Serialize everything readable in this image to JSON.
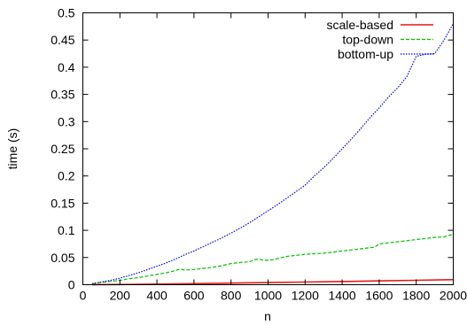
{
  "chart_data": {
    "type": "line",
    "xlabel": "n",
    "ylabel": "time (s)",
    "xlim": [
      0,
      2000
    ],
    "ylim": [
      0,
      0.5
    ],
    "x_ticks": [
      0,
      200,
      400,
      600,
      800,
      1000,
      1200,
      1400,
      1600,
      1800,
      2000
    ],
    "x_tick_labels": [
      "0",
      "200",
      "400",
      "600",
      "800",
      "1000",
      "1200",
      "1400",
      "1600",
      "1800",
      "2000"
    ],
    "y_ticks": [
      0,
      0.05,
      0.1,
      0.15,
      0.2,
      0.25,
      0.3,
      0.35,
      0.4,
      0.45,
      0.5
    ],
    "y_tick_labels": [
      "0",
      "0.05",
      "0.1",
      "0.15",
      "0.2",
      "0.25",
      "0.3",
      "0.35",
      "0.4",
      "0.45",
      "0.5"
    ],
    "grid": false,
    "legend_position": "top-right",
    "series": [
      {
        "name": "scale-based",
        "color": "#e41a1c",
        "style": "solid",
        "x": [
          50,
          200,
          400,
          600,
          800,
          1000,
          1200,
          1400,
          1600,
          1800,
          2000
        ],
        "y": [
          0.0001,
          0.0004,
          0.0011,
          0.0019,
          0.0029,
          0.0039,
          0.0049,
          0.0059,
          0.007,
          0.0081,
          0.0093
        ]
      },
      {
        "name": "top-down",
        "color": "#00c000",
        "style": "dashed",
        "x": [
          50,
          100,
          150,
          200,
          250,
          300,
          350,
          400,
          450,
          500,
          525,
          550,
          600,
          650,
          700,
          750,
          800,
          850,
          900,
          925,
          950,
          975,
          1000,
          1025,
          1050,
          1100,
          1150,
          1200,
          1250,
          1300,
          1350,
          1400,
          1450,
          1500,
          1550,
          1575,
          1600,
          1650,
          1700,
          1750,
          1800,
          1850,
          1900,
          1950,
          2000
        ],
        "y": [
          0.002,
          0.004,
          0.006,
          0.008,
          0.011,
          0.013,
          0.016,
          0.019,
          0.022,
          0.026,
          0.029,
          0.027,
          0.028,
          0.03,
          0.032,
          0.035,
          0.039,
          0.041,
          0.042,
          0.046,
          0.047,
          0.045,
          0.045,
          0.046,
          0.048,
          0.052,
          0.054,
          0.056,
          0.057,
          0.058,
          0.06,
          0.062,
          0.064,
          0.066,
          0.068,
          0.069,
          0.075,
          0.077,
          0.079,
          0.081,
          0.083,
          0.085,
          0.087,
          0.088,
          0.093
        ]
      },
      {
        "name": "bottom-up",
        "color": "#0000e0",
        "style": "dotted",
        "x": [
          50,
          100,
          150,
          200,
          250,
          300,
          350,
          400,
          450,
          500,
          550,
          600,
          650,
          700,
          750,
          800,
          850,
          900,
          950,
          1000,
          1050,
          1100,
          1150,
          1200,
          1250,
          1300,
          1350,
          1400,
          1450,
          1500,
          1550,
          1600,
          1650,
          1700,
          1750,
          1800,
          1850,
          1900,
          1950,
          2000
        ],
        "y": [
          0.002,
          0.005,
          0.008,
          0.012,
          0.017,
          0.022,
          0.028,
          0.034,
          0.04,
          0.047,
          0.055,
          0.062,
          0.07,
          0.078,
          0.086,
          0.095,
          0.104,
          0.114,
          0.125,
          0.136,
          0.147,
          0.159,
          0.171,
          0.183,
          0.2,
          0.215,
          0.232,
          0.25,
          0.268,
          0.287,
          0.307,
          0.325,
          0.345,
          0.362,
          0.383,
          0.42,
          0.424,
          0.425,
          0.45,
          0.48
        ]
      }
    ]
  }
}
